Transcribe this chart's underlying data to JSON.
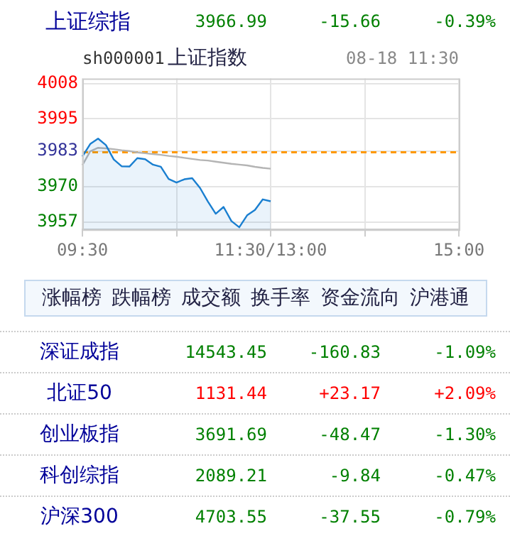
{
  "chart_data": {
    "type": "area",
    "annotations": [
      "上证综指",
      "3966.99",
      "-15.66",
      "-0.39%",
      "sh000001",
      "上证指数",
      "08-18 11:30",
      "涨幅榜",
      "跌幅榜",
      "成交额",
      "换手率",
      "资金流向",
      "沪港通",
      "深证成指",
      "14543.45",
      "-160.83",
      "-1.09%",
      "北证50",
      "1131.44",
      "+23.17",
      "+2.09%",
      "创业板指",
      "3691.69",
      "-48.47",
      "-1.30%",
      "科创综指",
      "2089.21",
      "-9.84",
      "-0.47%",
      "沪深300",
      "4703.55",
      "-37.55",
      "-0.79%"
    ],
    "categories": [
      "09:30",
      null,
      null,
      null,
      null,
      null,
      null,
      null,
      null,
      null,
      null,
      null,
      null,
      null,
      null,
      null,
      null,
      null,
      null,
      null,
      null,
      null,
      null,
      null,
      "11:30/13:00",
      null,
      null,
      null,
      null,
      null,
      null,
      null,
      null,
      null,
      null,
      null,
      null,
      null,
      null,
      null,
      null,
      null,
      null,
      null,
      null,
      null,
      null,
      null,
      "15:00"
    ],
    "series": [
      {
        "type": "area",
        "color": "#1a7fd0",
        "values": [
          3981.1,
          3985.7,
          3987.7,
          3985.3,
          3980,
          3977.5,
          3977.4,
          3980.5,
          3980.1,
          3978.1,
          3977.3,
          3972.8,
          3971.5,
          3972.7,
          3973.1,
          3969.5,
          3964.5,
          3960,
          3962.5,
          3957.3,
          3955,
          3959.4,
          3961.4,
          3965.3,
          3964.6,
          null,
          null,
          null,
          null,
          null,
          null,
          null,
          null,
          null,
          null,
          null,
          null,
          null,
          null,
          null,
          null,
          null,
          null,
          null,
          null,
          null,
          null,
          null,
          null
        ]
      },
      {
        "type": "line",
        "color": "#b4b4b4",
        "values": [
          3977.9,
          3983,
          3984.3,
          3984.1,
          3983.8,
          3983.4,
          3983.1,
          3982.6,
          3982.3,
          3982,
          3981.7,
          3981.3,
          3981,
          3980.6,
          3980.2,
          3979.8,
          3979.6,
          3979.2,
          3978.8,
          3978.4,
          3978.1,
          3977.8,
          3977.3,
          3976.9,
          3976.6,
          null,
          null,
          null,
          null,
          null,
          null,
          null,
          null,
          null,
          null,
          null,
          null,
          null,
          null,
          null,
          null,
          null,
          null,
          null,
          null,
          null,
          null,
          null,
          null
        ]
      }
    ],
    "ylim": [
      3954.2,
      4009.9
    ],
    "yticks": [
      3957,
      3970,
      3983,
      3995,
      4008
    ],
    "ref_lines": [
      {
        "axis": "y",
        "value": 3982.65,
        "color": "#ff9900",
        "line_style": "dashed"
      }
    ],
    "grid": true,
    "legend": false,
    "marker": "none",
    "line_style": "solid"
  }
}
